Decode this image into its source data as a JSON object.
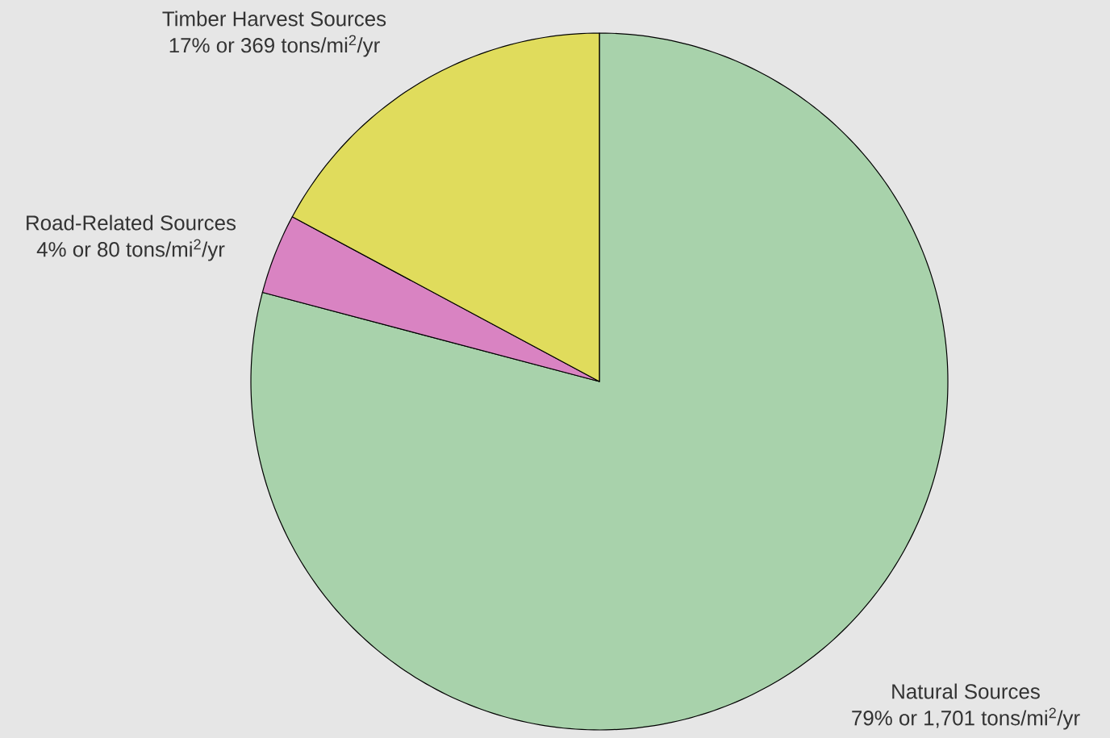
{
  "chart_data": {
    "type": "pie",
    "categories": [
      "Natural Sources",
      "Road-Related Sources",
      "Timber Harvest Sources"
    ],
    "values": [
      1701,
      80,
      369
    ],
    "value_labels": [
      "79% or 1,701 tons/mi$^{2}$/yr",
      "4% or 80 tons/mi$^{2}$/yr",
      "17% or 369 tons/mi$^{2}$/yr"
    ],
    "colors": [
      "#a8d2ab",
      "#d983c2",
      "#e0dc5c"
    ]
  }
}
